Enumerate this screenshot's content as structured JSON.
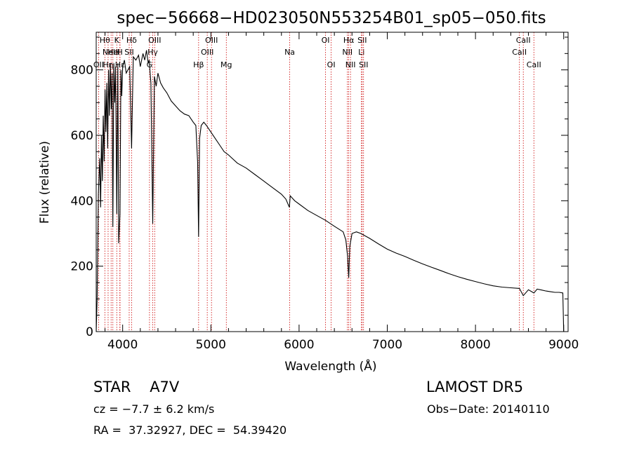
{
  "chart_data": {
    "type": "line",
    "title": "spec−56668−HD023050N553254B01_sp05−050.fits",
    "xlabel": "Wavelength (Å)",
    "ylabel": "Flux (relative)",
    "xlim": [
      3700,
      9050
    ],
    "ylim": [
      0,
      915
    ],
    "xticks": [
      4000,
      5000,
      6000,
      7000,
      8000,
      9000
    ],
    "yticks": [
      0,
      200,
      400,
      600,
      800
    ],
    "grid": false,
    "line_color": "#000000",
    "marker_color": "#cc0000",
    "series": [
      {
        "x": [
          3700,
          3710,
          3725,
          3740,
          3750,
          3760,
          3770,
          3780,
          3790,
          3800,
          3810,
          3820,
          3830,
          3840,
          3850,
          3860,
          3870,
          3880,
          3889,
          3900,
          3910,
          3920,
          3933,
          3945,
          3955,
          3970,
          3980,
          3990,
          4000,
          4020,
          4040,
          4060,
          4080,
          4101,
          4120,
          4150,
          4180,
          4200,
          4230,
          4250,
          4270,
          4290,
          4300,
          4320,
          4341,
          4360,
          4380,
          4400,
          4430,
          4460,
          4500,
          4550,
          4600,
          4650,
          4700,
          4750,
          4800,
          4830,
          4850,
          4861,
          4872,
          4890,
          4920,
          4950,
          5000,
          5050,
          5100,
          5150,
          5200,
          5300,
          5400,
          5500,
          5600,
          5700,
          5800,
          5850,
          5890,
          5900,
          5950,
          6000,
          6100,
          6200,
          6300,
          6400,
          6500,
          6530,
          6550,
          6563,
          6575,
          6600,
          6650,
          6700,
          6800,
          6900,
          7000,
          7100,
          7200,
          7300,
          7400,
          7500,
          7600,
          7700,
          7800,
          7900,
          8000,
          8100,
          8200,
          8300,
          8400,
          8498,
          8542,
          8600,
          8662,
          8700,
          8750,
          8800,
          8850,
          8900,
          8950,
          8990,
          9000,
          9005
        ],
        "y": [
          0,
          100,
          420,
          530,
          380,
          600,
          460,
          660,
          520,
          740,
          610,
          760,
          560,
          800,
          660,
          820,
          680,
          790,
          320,
          820,
          700,
          810,
          360,
          820,
          270,
          360,
          800,
          720,
          810,
          830,
          790,
          800,
          810,
          560,
          840,
          830,
          845,
          810,
          850,
          830,
          860,
          820,
          830,
          760,
          330,
          780,
          750,
          790,
          760,
          745,
          730,
          705,
          690,
          675,
          665,
          660,
          640,
          630,
          520,
          290,
          590,
          630,
          640,
          630,
          610,
          590,
          570,
          550,
          540,
          515,
          500,
          480,
          460,
          440,
          420,
          405,
          380,
          415,
          400,
          390,
          370,
          355,
          340,
          322,
          305,
          280,
          230,
          165,
          260,
          300,
          305,
          300,
          285,
          268,
          252,
          240,
          230,
          218,
          207,
          197,
          187,
          177,
          168,
          160,
          153,
          146,
          140,
          136,
          134,
          132,
          110,
          128,
          118,
          130,
          127,
          124,
          122,
          120,
          120,
          118,
          0,
          0
        ]
      }
    ],
    "lines": [
      {
        "x": 3727,
        "label": "OII",
        "row": 2
      },
      {
        "x": 3798,
        "label": "Hθ",
        "row": 0
      },
      {
        "x": 3835,
        "label": "Hη",
        "row": 2
      },
      {
        "x": 3869,
        "label": "NeIII",
        "row": 1
      },
      {
        "x": 3889,
        "label": "He",
        "row": 1
      },
      {
        "x": 3933,
        "label": "K",
        "row": 0
      },
      {
        "x": 3968,
        "label": "H",
        "row": 1
      },
      {
        "x": 3970,
        "label": "Hε",
        "row": 2
      },
      {
        "x": 4101,
        "label": "Hδ",
        "row": 0
      },
      {
        "x": 4074,
        "label": "SII",
        "row": 1
      },
      {
        "x": 4304,
        "label": "G",
        "row": 2
      },
      {
        "x": 4341,
        "label": "Hγ",
        "row": 1
      },
      {
        "x": 4363,
        "label": "OIII",
        "row": 0
      },
      {
        "x": 4861,
        "label": "Hβ",
        "row": 2
      },
      {
        "x": 4959,
        "label": "OIII",
        "row": 1
      },
      {
        "x": 5007,
        "label": "OIII",
        "row": 0
      },
      {
        "x": 5175,
        "label": "Mg",
        "row": 2
      },
      {
        "x": 5894,
        "label": "Na",
        "row": 1
      },
      {
        "x": 6300,
        "label": "OI",
        "row": 0
      },
      {
        "x": 6364,
        "label": "OI",
        "row": 2
      },
      {
        "x": 6548,
        "label": "NII",
        "row": 1
      },
      {
        "x": 6563,
        "label": "Hα",
        "row": 0
      },
      {
        "x": 6583,
        "label": "NII",
        "row": 2
      },
      {
        "x": 6707,
        "label": "Li",
        "row": 1
      },
      {
        "x": 6716,
        "label": "SII",
        "row": 0
      },
      {
        "x": 6731,
        "label": "SII",
        "row": 2
      },
      {
        "x": 8498,
        "label": "CaII",
        "row": 1
      },
      {
        "x": 8542,
        "label": "CaII",
        "row": 0
      },
      {
        "x": 8662,
        "label": "CaII",
        "row": 2
      }
    ]
  },
  "info": {
    "object_type": "STAR",
    "subclass": "A7V",
    "survey": "LAMOST DR5",
    "cz": "cz = −7.7 ± 6.2 km/s",
    "obs_date": "Obs−Date: 20140110",
    "radec": "RA =  37.32927, DEC =  54.39420"
  }
}
